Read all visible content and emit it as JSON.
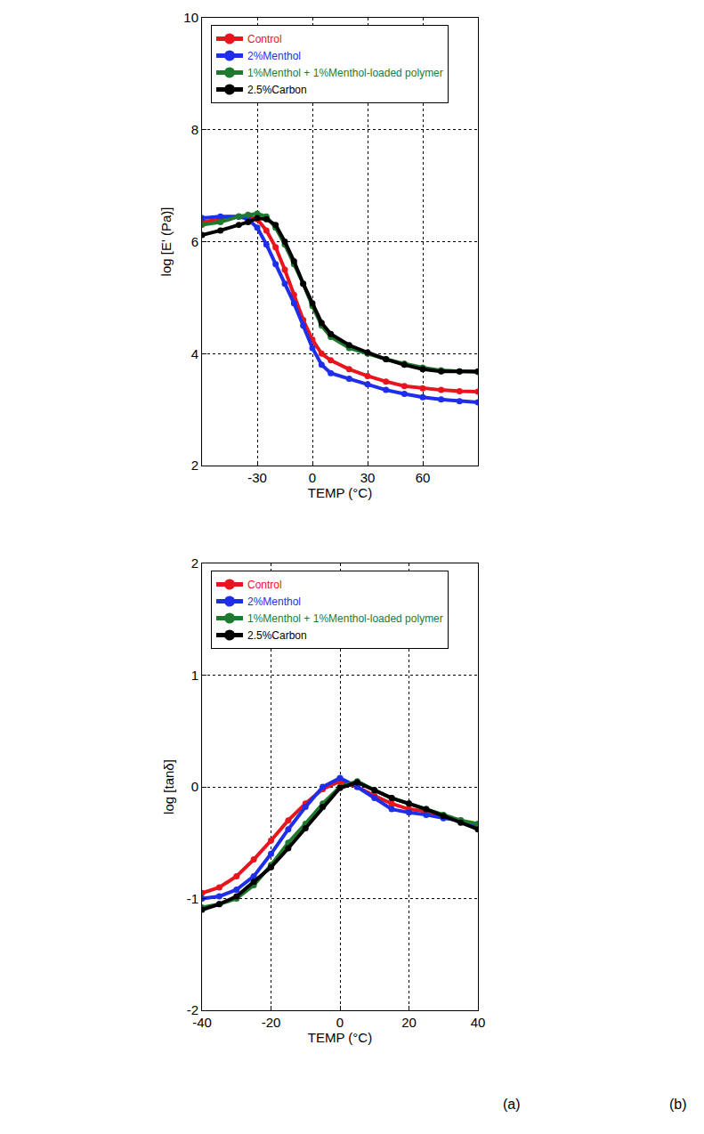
{
  "chart_data": [
    {
      "type": "scatter",
      "x_label": "TEMP (°C)",
      "y_label": "log [E' (Pa)]",
      "x": [
        -60,
        -50,
        -40,
        -35,
        -30,
        -25,
        -20,
        -15,
        -10,
        -5,
        0,
        5,
        10,
        20,
        30,
        40,
        50,
        60,
        70,
        80,
        90
      ],
      "series": [
        {
          "name": "Control",
          "color": "#e8141e",
          "marker": "circle",
          "line_style": "solid",
          "values": [
            6.35,
            6.4,
            6.45,
            6.45,
            6.4,
            6.2,
            5.9,
            5.5,
            5.05,
            4.6,
            4.25,
            4.0,
            3.88,
            3.72,
            3.6,
            3.5,
            3.42,
            3.38,
            3.35,
            3.33,
            3.32
          ]
        },
        {
          "name": "2%Menthol",
          "color": "#1f2ee8",
          "marker": "circle",
          "line_style": "solid",
          "values": [
            6.42,
            6.45,
            6.45,
            6.4,
            6.25,
            5.95,
            5.6,
            5.25,
            4.9,
            4.5,
            4.1,
            3.8,
            3.65,
            3.55,
            3.45,
            3.35,
            3.28,
            3.22,
            3.18,
            3.15,
            3.13
          ]
        },
        {
          "name": "1%Menthol + 1%Menthol-loaded polymer",
          "color": "#1e7a2e",
          "marker": "circle",
          "line_style": "solid",
          "values": [
            6.3,
            6.35,
            6.45,
            6.48,
            6.5,
            6.45,
            6.25,
            5.95,
            5.6,
            5.25,
            4.85,
            4.5,
            4.3,
            4.1,
            4.0,
            3.9,
            3.82,
            3.75,
            3.7,
            3.68,
            3.67
          ]
        },
        {
          "name": "2.5%Carbon",
          "color": "#000000",
          "marker": "circle",
          "line_style": "solid",
          "values": [
            6.12,
            6.2,
            6.3,
            6.35,
            6.42,
            6.4,
            6.3,
            6.0,
            5.65,
            5.25,
            4.9,
            4.55,
            4.35,
            4.15,
            4.02,
            3.9,
            3.8,
            3.72,
            3.68,
            3.68,
            3.68
          ]
        }
      ],
      "xlim": [
        -60,
        90
      ],
      "xticks": [
        -30,
        0,
        30,
        60
      ],
      "ylim": [
        2,
        10
      ],
      "yticks": [
        2,
        4,
        6,
        8,
        10
      ],
      "grid": true,
      "legend": "upper left"
    },
    {
      "type": "scatter",
      "x_label": "TEMP (°C)",
      "y_label": "log [tanδ]",
      "x": [
        -40,
        -35,
        -30,
        -25,
        -20,
        -15,
        -10,
        -5,
        0,
        5,
        10,
        15,
        20,
        25,
        30,
        35,
        40
      ],
      "series": [
        {
          "name": "Control",
          "color": "#e8141e",
          "marker": "circle",
          "line_style": "solid",
          "values": [
            -0.95,
            -0.9,
            -0.8,
            -0.65,
            -0.48,
            -0.3,
            -0.15,
            -0.02,
            0.05,
            0.0,
            -0.08,
            -0.15,
            -0.2,
            -0.22,
            -0.27,
            -0.3,
            -0.35
          ]
        },
        {
          "name": "2%Menthol",
          "color": "#1f2ee8",
          "marker": "circle",
          "line_style": "solid",
          "values": [
            -1.0,
            -0.98,
            -0.92,
            -0.8,
            -0.6,
            -0.38,
            -0.18,
            0.0,
            0.08,
            0.0,
            -0.1,
            -0.2,
            -0.23,
            -0.25,
            -0.28,
            -0.3,
            -0.35
          ]
        },
        {
          "name": "1%Menthol + 1%Menthol-loaded polymer",
          "color": "#1e7a2e",
          "marker": "circle",
          "line_style": "solid",
          "values": [
            -1.08,
            -1.05,
            -1.0,
            -0.88,
            -0.7,
            -0.5,
            -0.33,
            -0.15,
            0.0,
            0.05,
            -0.03,
            -0.1,
            -0.15,
            -0.2,
            -0.25,
            -0.3,
            -0.33
          ]
        },
        {
          "name": "2.5%Carbon",
          "color": "#000000",
          "marker": "circle",
          "line_style": "solid",
          "values": [
            -1.1,
            -1.05,
            -0.98,
            -0.85,
            -0.72,
            -0.55,
            -0.37,
            -0.18,
            -0.01,
            0.04,
            -0.03,
            -0.1,
            -0.15,
            -0.2,
            -0.26,
            -0.32,
            -0.38
          ]
        }
      ],
      "xlim": [
        -40,
        40
      ],
      "xticks": [
        -40,
        -20,
        0,
        20,
        40
      ],
      "ylim": [
        -2,
        2
      ],
      "yticks": [
        -2,
        -1,
        0,
        1,
        2
      ],
      "grid": true,
      "legend": "upper left",
      "annotations": [
        "(a)",
        "(b)"
      ]
    }
  ]
}
